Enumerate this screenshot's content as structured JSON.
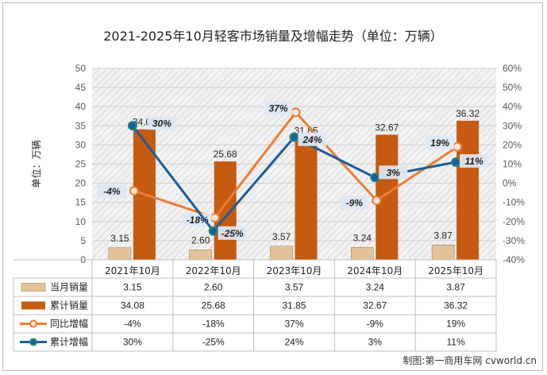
{
  "chart_data": {
    "type": "bar",
    "title": "2021-2025年10月轻客市场销量及增幅走势（单位：万辆）",
    "ylabel": "单位：万辆",
    "ylim": [
      0,
      50
    ],
    "y_ticks": [
      "0",
      "5",
      "10",
      "15",
      "20",
      "25",
      "30",
      "35",
      "40",
      "45",
      "50"
    ],
    "y2lim": [
      -40,
      60
    ],
    "y2_ticks": [
      "-40%",
      "-30%",
      "-20%",
      "-10%",
      "0%",
      "10%",
      "20%",
      "30%",
      "40%",
      "50%",
      "60%"
    ],
    "categories": [
      "2021年10月",
      "2022年10月",
      "2023年10月",
      "2024年10月",
      "2025年10月"
    ],
    "series": [
      {
        "name": "当月销量",
        "type": "bar",
        "axis": "left",
        "color": "#e3c39a",
        "values": [
          3.15,
          2.6,
          3.57,
          3.24,
          3.87
        ],
        "labels": [
          "3.15",
          "2.60",
          "3.57",
          "3.24",
          "3.87"
        ]
      },
      {
        "name": "累计销量",
        "type": "bar",
        "axis": "left",
        "color": "#c55a11",
        "values": [
          34.08,
          25.68,
          31.85,
          32.67,
          36.32
        ],
        "labels": [
          "34.08",
          "25.68",
          "31.85",
          "32.67",
          "36.32"
        ]
      },
      {
        "name": "同比增幅",
        "type": "line",
        "axis": "right",
        "color": "#ed7d31",
        "values": [
          -4,
          -18,
          37,
          -9,
          19
        ],
        "labels": [
          "-4%",
          "-18%",
          "37%",
          "-9%",
          "19%"
        ]
      },
      {
        "name": "累计增幅",
        "type": "line",
        "axis": "right",
        "color": "#1f5c99",
        "values": [
          30,
          -25,
          24,
          3,
          11
        ],
        "labels": [
          "30%",
          "-25%",
          "24%",
          "3%",
          "11%"
        ]
      }
    ],
    "legend": "bottom data table"
  },
  "source": "制图:第一商用车网 cvworld.cn"
}
